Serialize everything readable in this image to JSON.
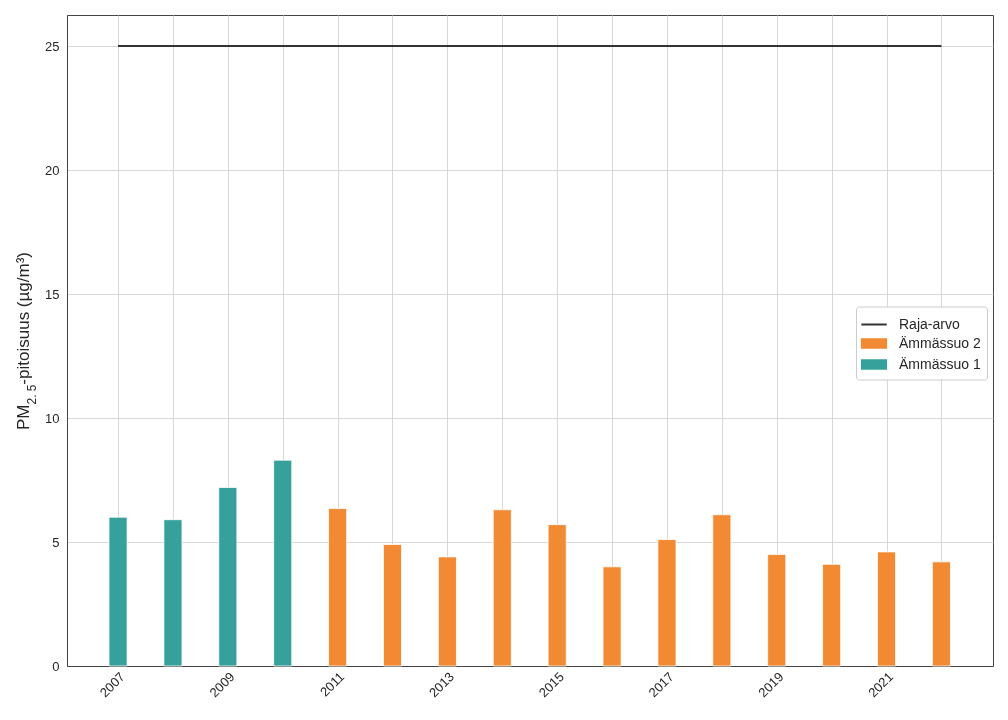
{
  "chart_data": {
    "type": "bar",
    "ylabel": "PM$_{2. 5}$-pitoisuus (µg/m³)",
    "series": [
      {
        "name": "Raja-arvo",
        "type": "line",
        "color": "#333333",
        "x": [
          2007,
          2022
        ],
        "values": [
          25,
          25
        ]
      },
      {
        "name": "Ämmässuo 2",
        "color": "#f18a32",
        "x": [
          2011,
          2012,
          2013,
          2014,
          2015,
          2016,
          2017,
          2018,
          2019,
          2020,
          2021,
          2022
        ],
        "values": [
          6.35,
          4.9,
          4.4,
          6.3,
          5.7,
          4.0,
          5.1,
          6.1,
          4.5,
          4.1,
          4.6,
          4.2
        ]
      },
      {
        "name": "Ämmässuo 1",
        "color": "#36a09b",
        "x": [
          2007,
          2008,
          2009,
          2010
        ],
        "values": [
          6.0,
          5.9,
          7.2,
          8.3
        ]
      }
    ],
    "xlim": [
      2006.07,
      2022.94
    ],
    "xticks": [
      2007,
      {
        "value": 2008,
        "label": null
      },
      2009,
      {
        "value": 2010,
        "label": null
      },
      2011,
      {
        "value": 2012,
        "label": null
      },
      2013,
      {
        "value": 2014,
        "label": null
      },
      2015,
      {
        "value": 2016,
        "label": null
      },
      2017,
      {
        "value": 2018,
        "label": null
      },
      2019,
      {
        "value": 2020,
        "label": null
      },
      2021,
      {
        "value": 2022,
        "label": null
      }
    ],
    "ylim": [
      0,
      26.25
    ],
    "yticks": [
      0,
      5,
      10,
      15,
      20,
      25
    ],
    "grid": true,
    "legend": "right"
  }
}
